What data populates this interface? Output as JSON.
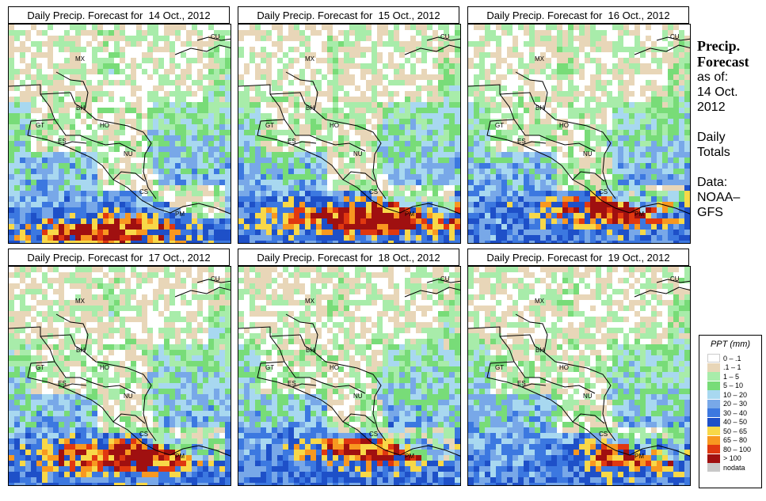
{
  "panels": [
    {
      "title": "Daily Precip. Forecast for  14 Oct., 2012",
      "variant": "d1"
    },
    {
      "title": "Daily Precip. Forecast for  15 Oct., 2012",
      "variant": "d2"
    },
    {
      "title": "Daily Precip. Forecast for  16 Oct., 2012",
      "variant": "d3"
    },
    {
      "title": "Daily Precip. Forecast for  17 Oct., 2012",
      "variant": "d4"
    },
    {
      "title": "Daily Precip. Forecast for  18 Oct., 2012",
      "variant": "d5"
    },
    {
      "title": "Daily Precip. Forecast for  19 Oct., 2012",
      "variant": "d6"
    }
  ],
  "country_labels": [
    "MX",
    "BH",
    "GT",
    "HO",
    "ES",
    "NU",
    "CS",
    "PM",
    "CU"
  ],
  "side": {
    "line1": "Precip.",
    "line2": "Forecast",
    "line3": "as of:",
    "line4": "14 Oct.",
    "line5": "2012",
    "line6": "Daily",
    "line7": "Totals",
    "line8": "Data:",
    "line9": "NOAA–",
    "line10": "GFS"
  },
  "legend": {
    "title": "PPT (mm)",
    "items": [
      {
        "label": "0 – .1",
        "color": "#ffffff"
      },
      {
        "label": ".1 – 1",
        "color": "#e8d6b8"
      },
      {
        "label": "1 – 5",
        "color": "#a8ecaa"
      },
      {
        "label": "5 – 10",
        "color": "#78dc78"
      },
      {
        "label": "10 – 20",
        "color": "#a8d8f0"
      },
      {
        "label": "20 – 30",
        "color": "#78a8e8"
      },
      {
        "label": "30 – 40",
        "color": "#3c78e0"
      },
      {
        "label": "40 – 50",
        "color": "#1e50c8"
      },
      {
        "label": "50 – 65",
        "color": "#f8d848"
      },
      {
        "label": "65 – 80",
        "color": "#f89820"
      },
      {
        "label": "80 – 100",
        "color": "#e03810"
      },
      {
        "label": "> 100",
        "color": "#a01010"
      },
      {
        "label": "nodata",
        "color": "#c8c8c8"
      }
    ]
  }
}
